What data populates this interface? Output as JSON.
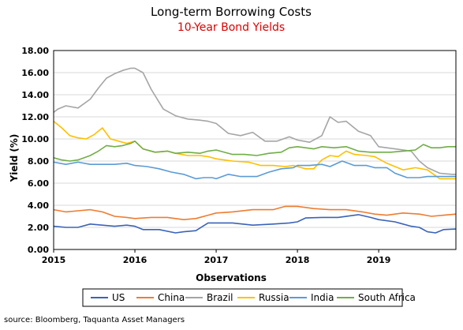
{
  "chart_data": {
    "type": "line",
    "title": "Long-term Borrowing Costs",
    "subtitle": "10-Year Bond Yields",
    "subtitle_color": "#e00000",
    "xlabel": "Observations",
    "ylabel": "Yield (%)",
    "xlim": [
      2015.0,
      2019.95
    ],
    "ylim": [
      0,
      18
    ],
    "yticks": [
      "0.00",
      "2.00",
      "4.00",
      "6.00",
      "8.00",
      "10.00",
      "12.00",
      "14.00",
      "16.00",
      "18.00"
    ],
    "xticks": [
      "2015",
      "2016",
      "2017",
      "2018",
      "2019"
    ],
    "grid": true,
    "legend_position": "bottom",
    "source": "source: Bloomberg, Taquanta Asset Managers",
    "series": [
      {
        "name": "US",
        "color": "#3a63b8",
        "points": [
          [
            2015.0,
            2.1
          ],
          [
            2015.15,
            2.0
          ],
          [
            2015.3,
            2.0
          ],
          [
            2015.45,
            2.3
          ],
          [
            2015.6,
            2.2
          ],
          [
            2015.75,
            2.1
          ],
          [
            2015.9,
            2.2
          ],
          [
            2016.0,
            2.1
          ],
          [
            2016.1,
            1.8
          ],
          [
            2016.3,
            1.8
          ],
          [
            2016.5,
            1.5
          ],
          [
            2016.6,
            1.6
          ],
          [
            2016.75,
            1.7
          ],
          [
            2016.9,
            2.4
          ],
          [
            2017.0,
            2.4
          ],
          [
            2017.2,
            2.4
          ],
          [
            2017.45,
            2.2
          ],
          [
            2017.7,
            2.3
          ],
          [
            2017.9,
            2.4
          ],
          [
            2018.0,
            2.5
          ],
          [
            2018.1,
            2.85
          ],
          [
            2018.3,
            2.9
          ],
          [
            2018.5,
            2.9
          ],
          [
            2018.75,
            3.15
          ],
          [
            2018.9,
            2.9
          ],
          [
            2019.0,
            2.7
          ],
          [
            2019.2,
            2.5
          ],
          [
            2019.4,
            2.1
          ],
          [
            2019.5,
            2.0
          ],
          [
            2019.6,
            1.6
          ],
          [
            2019.7,
            1.5
          ],
          [
            2019.8,
            1.8
          ],
          [
            2019.95,
            1.85
          ]
        ]
      },
      {
        "name": "China",
        "color": "#ed7d31",
        "points": [
          [
            2015.0,
            3.6
          ],
          [
            2015.15,
            3.4
          ],
          [
            2015.3,
            3.5
          ],
          [
            2015.45,
            3.6
          ],
          [
            2015.6,
            3.4
          ],
          [
            2015.75,
            3.0
          ],
          [
            2015.9,
            2.9
          ],
          [
            2016.0,
            2.8
          ],
          [
            2016.2,
            2.9
          ],
          [
            2016.4,
            2.9
          ],
          [
            2016.6,
            2.7
          ],
          [
            2016.75,
            2.8
          ],
          [
            2016.9,
            3.1
          ],
          [
            2017.0,
            3.3
          ],
          [
            2017.2,
            3.4
          ],
          [
            2017.45,
            3.6
          ],
          [
            2017.7,
            3.6
          ],
          [
            2017.85,
            3.9
          ],
          [
            2018.0,
            3.9
          ],
          [
            2018.2,
            3.7
          ],
          [
            2018.4,
            3.6
          ],
          [
            2018.6,
            3.6
          ],
          [
            2018.8,
            3.4
          ],
          [
            2018.95,
            3.2
          ],
          [
            2019.1,
            3.1
          ],
          [
            2019.3,
            3.3
          ],
          [
            2019.5,
            3.2
          ],
          [
            2019.65,
            3.0
          ],
          [
            2019.8,
            3.1
          ],
          [
            2019.95,
            3.2
          ]
        ]
      },
      {
        "name": "Brazil",
        "color": "#a5a5a5",
        "points": [
          [
            2015.0,
            12.4
          ],
          [
            2015.05,
            12.7
          ],
          [
            2015.15,
            13.0
          ],
          [
            2015.3,
            12.8
          ],
          [
            2015.45,
            13.6
          ],
          [
            2015.55,
            14.6
          ],
          [
            2015.65,
            15.5
          ],
          [
            2015.75,
            15.9
          ],
          [
            2015.85,
            16.2
          ],
          [
            2015.95,
            16.4
          ],
          [
            2016.0,
            16.4
          ],
          [
            2016.1,
            16.0
          ],
          [
            2016.2,
            14.5
          ],
          [
            2016.35,
            12.7
          ],
          [
            2016.5,
            12.1
          ],
          [
            2016.65,
            11.8
          ],
          [
            2016.8,
            11.7
          ],
          [
            2016.9,
            11.6
          ],
          [
            2017.0,
            11.4
          ],
          [
            2017.15,
            10.5
          ],
          [
            2017.3,
            10.3
          ],
          [
            2017.45,
            10.6
          ],
          [
            2017.6,
            9.8
          ],
          [
            2017.75,
            9.8
          ],
          [
            2017.9,
            10.2
          ],
          [
            2018.0,
            9.9
          ],
          [
            2018.15,
            9.7
          ],
          [
            2018.3,
            10.3
          ],
          [
            2018.4,
            12.0
          ],
          [
            2018.5,
            11.5
          ],
          [
            2018.6,
            11.6
          ],
          [
            2018.75,
            10.7
          ],
          [
            2018.9,
            10.3
          ],
          [
            2019.0,
            9.3
          ],
          [
            2019.2,
            9.1
          ],
          [
            2019.4,
            8.9
          ],
          [
            2019.5,
            8.0
          ],
          [
            2019.6,
            7.4
          ],
          [
            2019.75,
            6.9
          ],
          [
            2019.9,
            6.8
          ],
          [
            2019.95,
            6.8
          ]
        ]
      },
      {
        "name": "Russia",
        "color": "#ffc000",
        "points": [
          [
            2015.0,
            11.6
          ],
          [
            2015.1,
            11.0
          ],
          [
            2015.2,
            10.3
          ],
          [
            2015.3,
            10.1
          ],
          [
            2015.4,
            10.0
          ],
          [
            2015.5,
            10.4
          ],
          [
            2015.6,
            11.0
          ],
          [
            2015.7,
            10.0
          ],
          [
            2015.8,
            9.8
          ],
          [
            2015.9,
            9.6
          ],
          [
            2016.0,
            9.8
          ],
          [
            2016.1,
            9.1
          ],
          [
            2016.25,
            8.8
          ],
          [
            2016.4,
            8.9
          ],
          [
            2016.5,
            8.7
          ],
          [
            2016.65,
            8.5
          ],
          [
            2016.8,
            8.5
          ],
          [
            2016.9,
            8.4
          ],
          [
            2017.0,
            8.2
          ],
          [
            2017.2,
            8.0
          ],
          [
            2017.4,
            7.9
          ],
          [
            2017.55,
            7.6
          ],
          [
            2017.7,
            7.6
          ],
          [
            2017.85,
            7.5
          ],
          [
            2017.95,
            7.6
          ],
          [
            2018.0,
            7.5
          ],
          [
            2018.1,
            7.3
          ],
          [
            2018.2,
            7.3
          ],
          [
            2018.3,
            8.1
          ],
          [
            2018.4,
            8.5
          ],
          [
            2018.5,
            8.4
          ],
          [
            2018.6,
            8.9
          ],
          [
            2018.7,
            8.6
          ],
          [
            2018.85,
            8.5
          ],
          [
            2018.95,
            8.4
          ],
          [
            2019.1,
            7.8
          ],
          [
            2019.3,
            7.2
          ],
          [
            2019.45,
            7.4
          ],
          [
            2019.6,
            7.2
          ],
          [
            2019.75,
            6.4
          ],
          [
            2019.9,
            6.4
          ],
          [
            2019.95,
            6.4
          ]
        ]
      },
      {
        "name": "India",
        "color": "#5b9bd5",
        "points": [
          [
            2015.0,
            7.9
          ],
          [
            2015.15,
            7.7
          ],
          [
            2015.3,
            7.9
          ],
          [
            2015.45,
            7.7
          ],
          [
            2015.6,
            7.7
          ],
          [
            2015.75,
            7.7
          ],
          [
            2015.9,
            7.8
          ],
          [
            2016.0,
            7.6
          ],
          [
            2016.15,
            7.5
          ],
          [
            2016.3,
            7.3
          ],
          [
            2016.45,
            7.0
          ],
          [
            2016.6,
            6.8
          ],
          [
            2016.75,
            6.4
          ],
          [
            2016.85,
            6.5
          ],
          [
            2016.95,
            6.5
          ],
          [
            2017.0,
            6.4
          ],
          [
            2017.15,
            6.8
          ],
          [
            2017.3,
            6.6
          ],
          [
            2017.5,
            6.6
          ],
          [
            2017.65,
            7.0
          ],
          [
            2017.8,
            7.3
          ],
          [
            2017.95,
            7.4
          ],
          [
            2018.0,
            7.6
          ],
          [
            2018.15,
            7.6
          ],
          [
            2018.3,
            7.7
          ],
          [
            2018.4,
            7.5
          ],
          [
            2018.55,
            8.0
          ],
          [
            2018.7,
            7.6
          ],
          [
            2018.85,
            7.6
          ],
          [
            2018.95,
            7.4
          ],
          [
            2019.1,
            7.4
          ],
          [
            2019.2,
            6.9
          ],
          [
            2019.35,
            6.5
          ],
          [
            2019.5,
            6.5
          ],
          [
            2019.6,
            6.6
          ],
          [
            2019.75,
            6.6
          ],
          [
            2019.9,
            6.6
          ],
          [
            2019.95,
            6.6
          ]
        ]
      },
      {
        "name": "South Africa",
        "color": "#70ad47",
        "points": [
          [
            2015.0,
            8.3
          ],
          [
            2015.1,
            8.1
          ],
          [
            2015.2,
            8.0
          ],
          [
            2015.3,
            8.1
          ],
          [
            2015.45,
            8.5
          ],
          [
            2015.55,
            8.9
          ],
          [
            2015.65,
            9.4
          ],
          [
            2015.75,
            9.3
          ],
          [
            2015.85,
            9.4
          ],
          [
            2015.95,
            9.6
          ],
          [
            2016.0,
            9.8
          ],
          [
            2016.1,
            9.1
          ],
          [
            2016.25,
            8.8
          ],
          [
            2016.4,
            8.9
          ],
          [
            2016.5,
            8.7
          ],
          [
            2016.65,
            8.8
          ],
          [
            2016.8,
            8.7
          ],
          [
            2016.9,
            8.9
          ],
          [
            2017.0,
            9.0
          ],
          [
            2017.2,
            8.6
          ],
          [
            2017.35,
            8.6
          ],
          [
            2017.5,
            8.5
          ],
          [
            2017.65,
            8.7
          ],
          [
            2017.8,
            8.8
          ],
          [
            2017.9,
            9.2
          ],
          [
            2018.0,
            9.3
          ],
          [
            2018.1,
            9.2
          ],
          [
            2018.2,
            9.1
          ],
          [
            2018.3,
            9.3
          ],
          [
            2018.45,
            9.2
          ],
          [
            2018.6,
            9.3
          ],
          [
            2018.75,
            8.9
          ],
          [
            2018.9,
            8.8
          ],
          [
            2019.0,
            8.8
          ],
          [
            2019.15,
            8.8
          ],
          [
            2019.3,
            8.9
          ],
          [
            2019.45,
            9.0
          ],
          [
            2019.55,
            9.5
          ],
          [
            2019.65,
            9.2
          ],
          [
            2019.75,
            9.2
          ],
          [
            2019.85,
            9.3
          ],
          [
            2019.95,
            9.3
          ]
        ]
      }
    ]
  }
}
